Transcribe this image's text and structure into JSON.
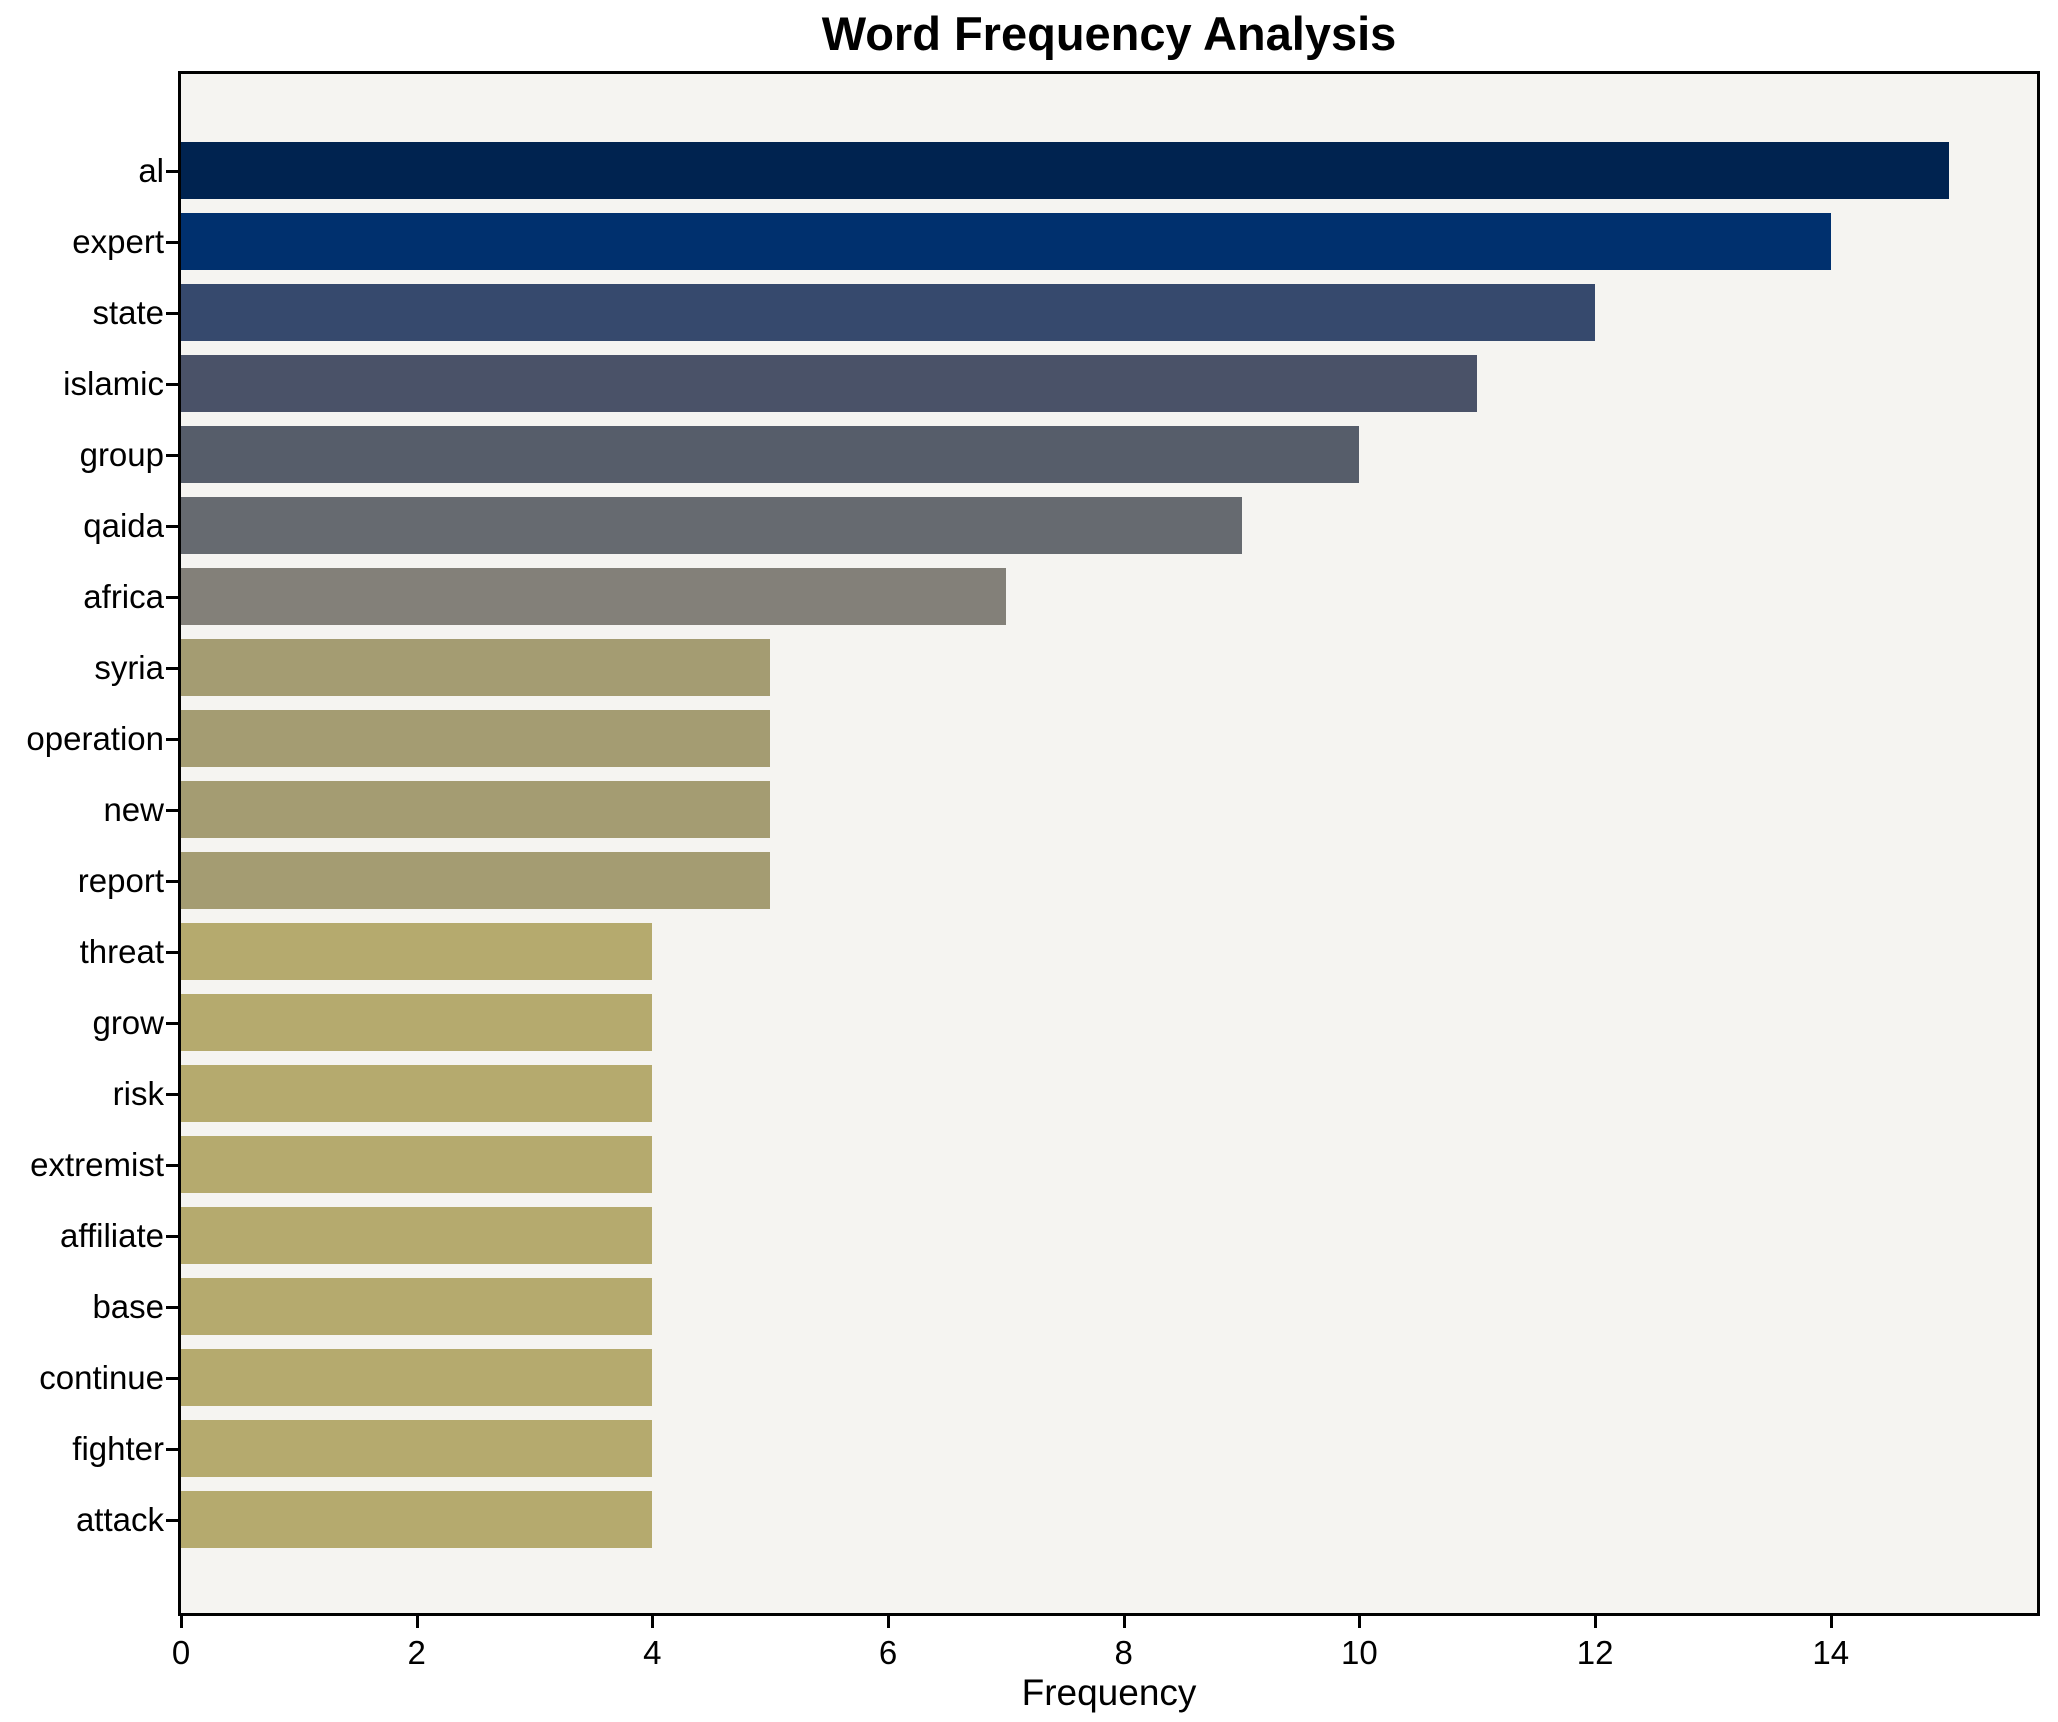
{
  "title": "Word Frequency Analysis",
  "chart_data": {
    "type": "bar",
    "orientation": "horizontal",
    "title": "Word Frequency Analysis",
    "xlabel": "Frequency",
    "ylabel": "",
    "categories": [
      "al",
      "expert",
      "state",
      "islamic",
      "group",
      "qaida",
      "africa",
      "syria",
      "operation",
      "new",
      "report",
      "threat",
      "grow",
      "risk",
      "extremist",
      "affiliate",
      "base",
      "continue",
      "fighter",
      "attack"
    ],
    "values": [
      15,
      14,
      12,
      11,
      10,
      9,
      7,
      5,
      5,
      5,
      5,
      4,
      4,
      4,
      4,
      4,
      4,
      4,
      4,
      4
    ],
    "bar_colors": [
      "#002350",
      "#00306e",
      "#36496d",
      "#4a5268",
      "#565d6a",
      "#666a70",
      "#838079",
      "#a49c72",
      "#a49c72",
      "#a49c72",
      "#a49c72",
      "#b5aa6e",
      "#b5aa6e",
      "#b5aa6e",
      "#b5aa6e",
      "#b5aa6e",
      "#b5aa6e",
      "#b5aa6e",
      "#b5aa6e",
      "#b5aa6e"
    ],
    "xlim": [
      0,
      15.75
    ],
    "xticks": [
      0,
      2,
      4,
      6,
      8,
      10,
      12,
      14
    ],
    "grid": false,
    "legend": null,
    "plot_background": "#f5f4f1",
    "frame_color": "#000000",
    "text_color": "#000000"
  }
}
